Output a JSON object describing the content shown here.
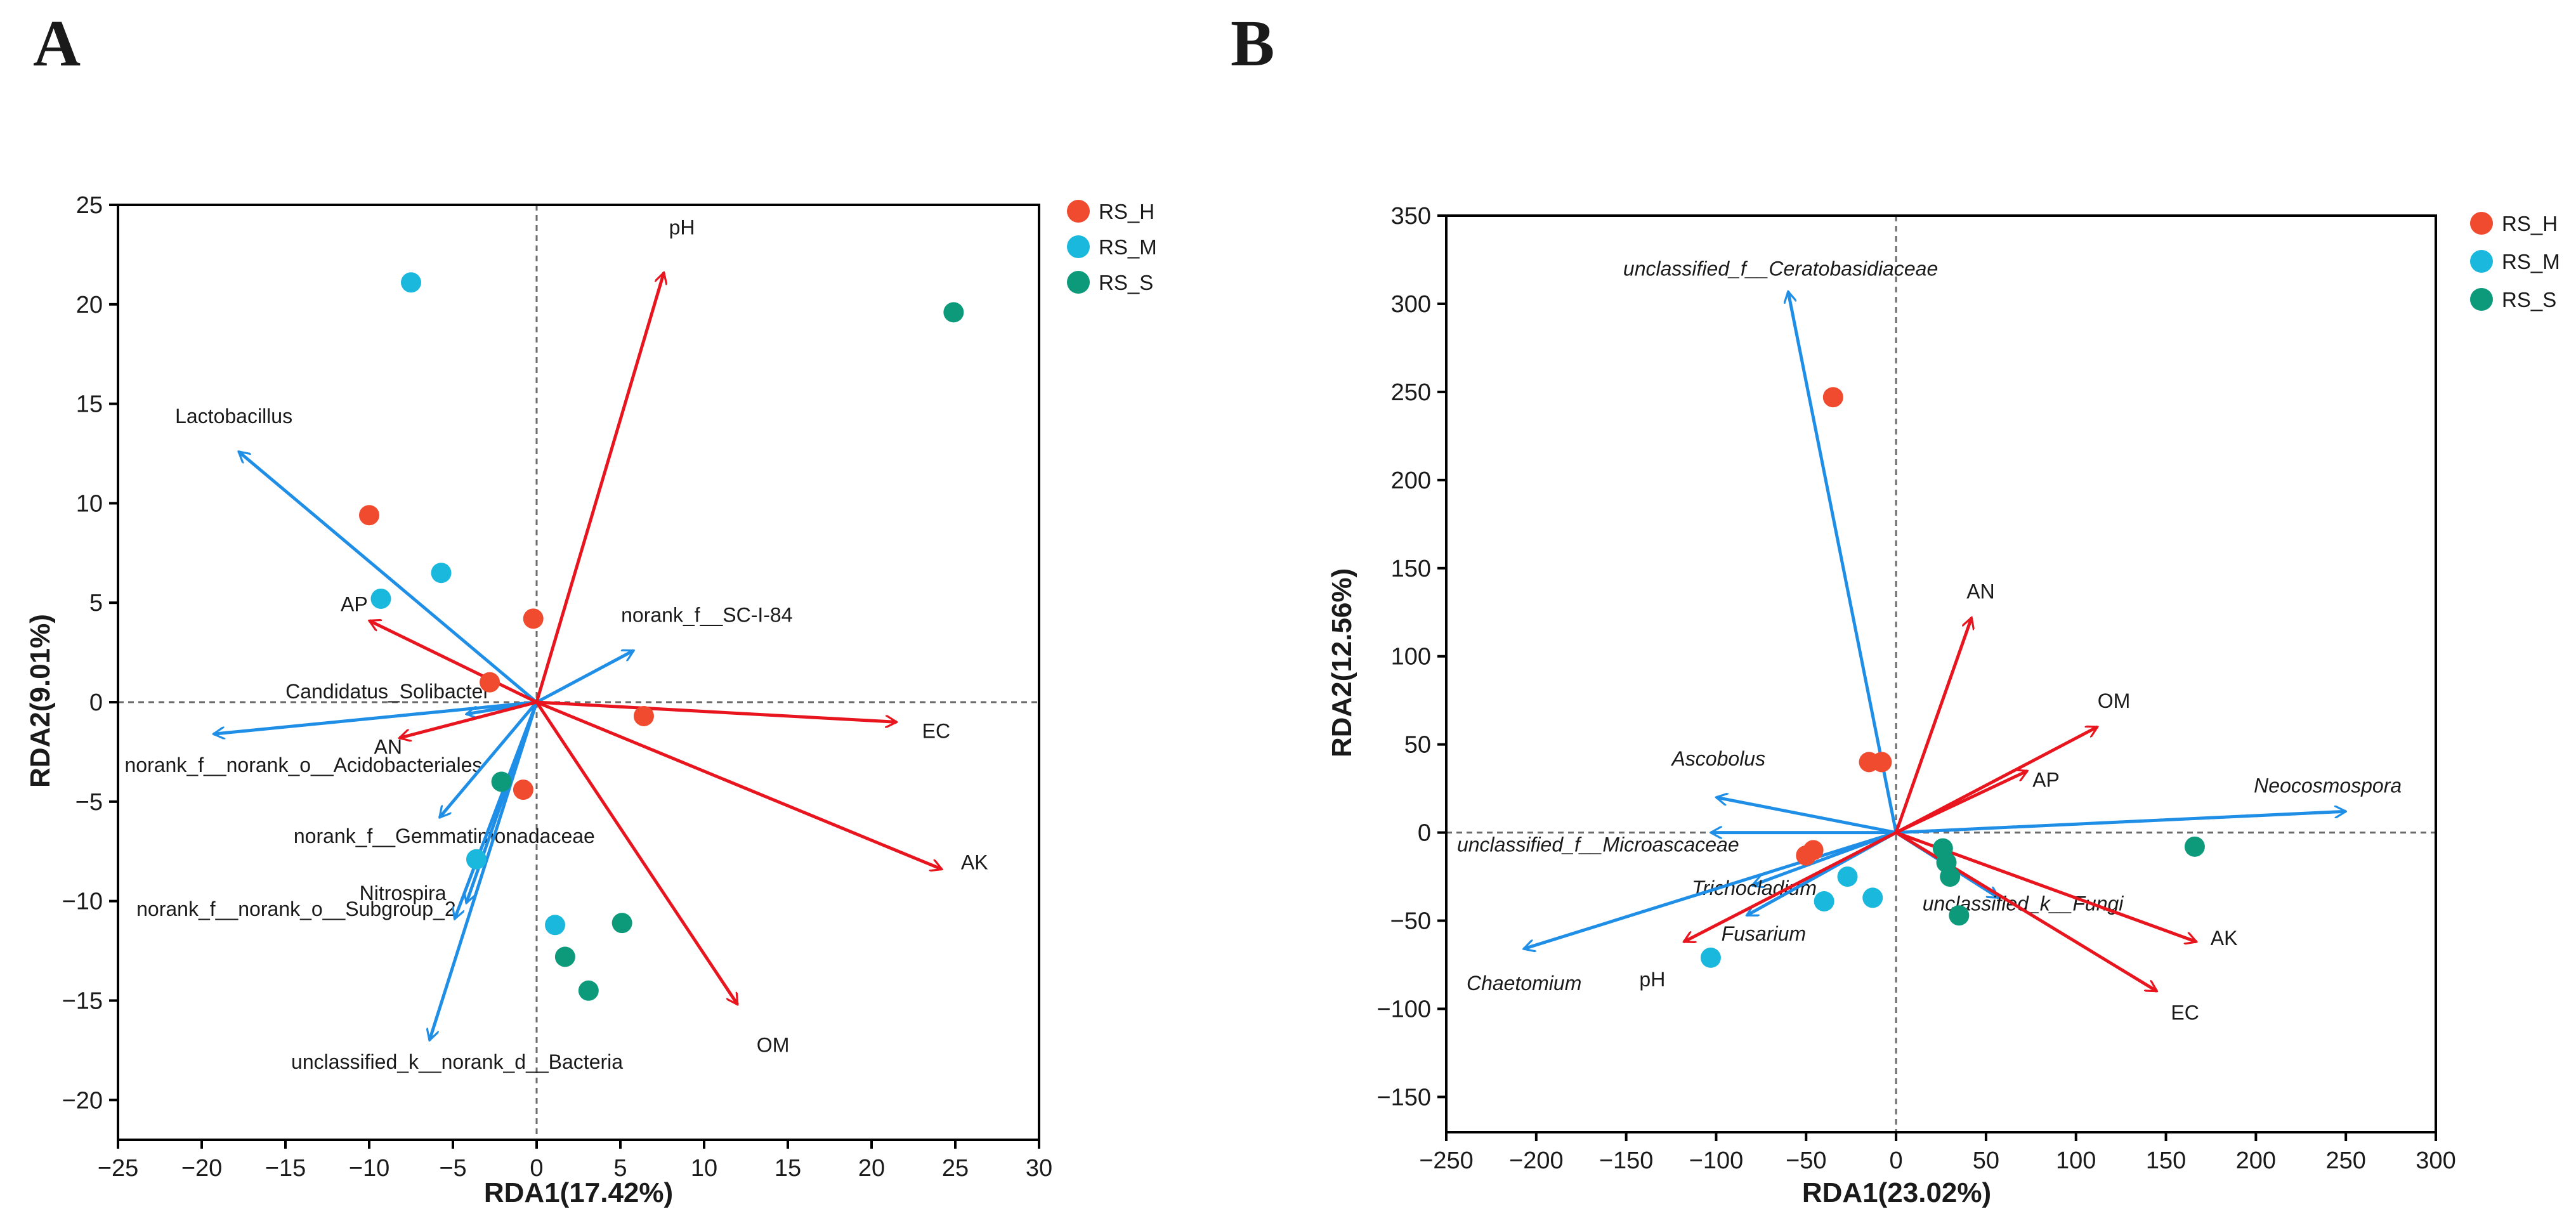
{
  "colors": {
    "RS_H": "#f04a2f",
    "RS_M": "#19b8dc",
    "RS_S": "#0c9a7a",
    "env_arrow": "#e8141e",
    "species_arrow": "#1f8ee6"
  },
  "chart_data": [
    {
      "type": "scatter",
      "panel_label": "A",
      "xlabel": "RDA1(17.42%)",
      "ylabel": "RDA2(9.01%)",
      "xlim": [
        -25,
        30
      ],
      "ylim": [
        -22,
        25
      ],
      "xticks": [
        -25,
        -20,
        -15,
        -10,
        -5,
        0,
        5,
        10,
        15,
        20,
        25,
        30
      ],
      "yticks": [
        -20,
        -15,
        -10,
        -5,
        0,
        5,
        10,
        15,
        20,
        25
      ],
      "legend": [
        "RS_H",
        "RS_M",
        "RS_S"
      ],
      "points": [
        {
          "group": "RS_H",
          "x": -10.0,
          "y": 9.4
        },
        {
          "group": "RS_H",
          "x": -0.2,
          "y": 4.2
        },
        {
          "group": "RS_H",
          "x": -2.8,
          "y": 1.0
        },
        {
          "group": "RS_H",
          "x": 6.4,
          "y": -0.7
        },
        {
          "group": "RS_H",
          "x": -0.8,
          "y": -4.4
        },
        {
          "group": "RS_M",
          "x": -7.5,
          "y": 21.1
        },
        {
          "group": "RS_M",
          "x": -9.3,
          "y": 5.2
        },
        {
          "group": "RS_M",
          "x": -5.7,
          "y": 6.5
        },
        {
          "group": "RS_M",
          "x": -3.6,
          "y": -7.9
        },
        {
          "group": "RS_M",
          "x": 1.1,
          "y": -11.2
        },
        {
          "group": "RS_S",
          "x": 24.9,
          "y": 19.6
        },
        {
          "group": "RS_S",
          "x": -2.1,
          "y": -4.0
        },
        {
          "group": "RS_S",
          "x": 5.1,
          "y": -11.1
        },
        {
          "group": "RS_S",
          "x": 1.7,
          "y": -12.8
        },
        {
          "group": "RS_S",
          "x": 3.1,
          "y": -14.5
        }
      ],
      "env_arrows": [
        {
          "label": "pH",
          "x": 7.6,
          "y": 21.6
        },
        {
          "label": "AP",
          "x": -10.0,
          "y": 4.1
        },
        {
          "label": "AN",
          "x": -8.2,
          "y": -1.8
        },
        {
          "label": "EC",
          "x": 21.5,
          "y": -1.0
        },
        {
          "label": "AK",
          "x": 24.2,
          "y": -8.4
        },
        {
          "label": "OM",
          "x": 12.0,
          "y": -15.2
        }
      ],
      "species_arrows": [
        {
          "label": "Lactobacillus",
          "x": -17.8,
          "y": 12.6
        },
        {
          "label": "norank_f__SC-I-84",
          "x": 5.8,
          "y": 2.6
        },
        {
          "label": "Candidatus_Solibacter",
          "x": -4.2,
          "y": -0.6
        },
        {
          "label": "norank_f__norank_o__Acidobacteriales",
          "x": -19.3,
          "y": -1.6
        },
        {
          "label": "norank_f__Gemmatimonadaceae",
          "x": -5.8,
          "y": -5.8
        },
        {
          "label": "norank_f__norank_o__Subgroup_2",
          "x": -4.2,
          "y": -10.1
        },
        {
          "label": "Nitrospira",
          "x": -4.9,
          "y": -10.9
        },
        {
          "label": "unclassified_k__norank_d__Bacteria",
          "x": -6.4,
          "y": -17.0
        }
      ]
    },
    {
      "type": "scatter",
      "panel_label": "B",
      "xlabel": "RDA1(23.02%)",
      "ylabel": "RDA2(12.56%)",
      "xlim": [
        -250,
        300
      ],
      "ylim": [
        -170,
        350
      ],
      "xticks": [
        -250,
        -200,
        -150,
        -100,
        -50,
        0,
        50,
        100,
        150,
        200,
        250,
        300
      ],
      "yticks": [
        -150,
        -100,
        -50,
        0,
        50,
        100,
        150,
        200,
        250,
        300,
        350
      ],
      "legend": [
        "RS_H",
        "RS_M",
        "RS_S"
      ],
      "points": [
        {
          "group": "RS_H",
          "x": -35,
          "y": 247
        },
        {
          "group": "RS_H",
          "x": -15,
          "y": 40
        },
        {
          "group": "RS_H",
          "x": -8,
          "y": 40
        },
        {
          "group": "RS_H",
          "x": -50,
          "y": -13
        },
        {
          "group": "RS_H",
          "x": -46,
          "y": -10
        },
        {
          "group": "RS_M",
          "x": -103,
          "y": -71
        },
        {
          "group": "RS_M",
          "x": -40,
          "y": -39
        },
        {
          "group": "RS_M",
          "x": -27,
          "y": -25
        },
        {
          "group": "RS_M",
          "x": -13,
          "y": -37
        },
        {
          "group": "RS_S",
          "x": 26,
          "y": -9
        },
        {
          "group": "RS_S",
          "x": 28,
          "y": -17
        },
        {
          "group": "RS_S",
          "x": 30,
          "y": -25
        },
        {
          "group": "RS_S",
          "x": 35,
          "y": -47
        },
        {
          "group": "RS_S",
          "x": 166,
          "y": -8
        }
      ],
      "env_arrows": [
        {
          "label": "AN",
          "x": 42,
          "y": 122
        },
        {
          "label": "OM",
          "x": 112,
          "y": 60
        },
        {
          "label": "AP",
          "x": 73,
          "y": 35
        },
        {
          "label": "AK",
          "x": 167,
          "y": -62
        },
        {
          "label": "EC",
          "x": 145,
          "y": -90
        },
        {
          "label": "pH",
          "x": -118,
          "y": -62
        }
      ],
      "species_arrows": [
        {
          "label": "unclassified_f__Ceratobasidiaceae",
          "x": -60,
          "y": 307
        },
        {
          "label": "Neocosmospora",
          "x": 250,
          "y": 12
        },
        {
          "label": "Ascobolus",
          "x": -100,
          "y": 20
        },
        {
          "label": "unclassified_f__Microascaceae",
          "x": -103,
          "y": 0
        },
        {
          "label": "Trichocladium",
          "x": -80,
          "y": -30
        },
        {
          "label": "Fusarium",
          "x": -83,
          "y": -47
        },
        {
          "label": "Chaetomium",
          "x": -207,
          "y": -66
        },
        {
          "label": "unclassified_k__Fungi",
          "x": 57,
          "y": -37
        }
      ]
    }
  ]
}
